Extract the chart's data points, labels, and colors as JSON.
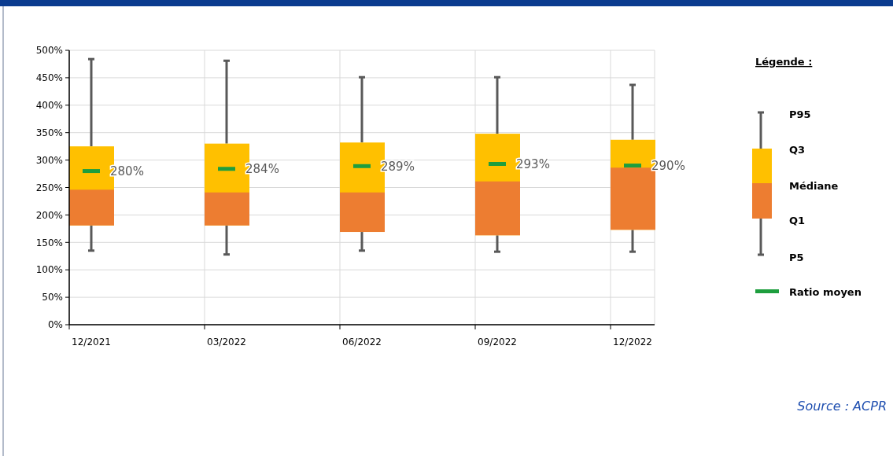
{
  "chart_data": {
    "type": "box",
    "categories": [
      "12/2021",
      "03/2022",
      "06/2022",
      "09/2022",
      "12/2022"
    ],
    "ylim": [
      0,
      500
    ],
    "yticks": [
      {
        "value": 0,
        "label": "0%"
      },
      {
        "value": 50,
        "label": "50%"
      },
      {
        "value": 100,
        "label": "100%"
      },
      {
        "value": 150,
        "label": "150%"
      },
      {
        "value": 200,
        "label": "200%"
      },
      {
        "value": 250,
        "label": "250%"
      },
      {
        "value": 300,
        "label": "300%"
      },
      {
        "value": 350,
        "label": "350%"
      },
      {
        "value": 400,
        "label": "400%"
      },
      {
        "value": 450,
        "label": "450%"
      },
      {
        "value": 500,
        "label": "500%"
      }
    ],
    "grid": true,
    "legend_title": "Légende :",
    "series": [
      {
        "color": "#ffc000",
        "boxes": [
          {
            "low": 135,
            "q1": 181,
            "median": 246,
            "q3": 325,
            "high": 484,
            "mean": 280
          },
          {
            "low": 128,
            "q1": 181,
            "median": 241,
            "q3": 330,
            "high": 481,
            "mean": 284
          },
          {
            "low": 135,
            "q1": 169,
            "median": 241,
            "q3": 332,
            "high": 451,
            "mean": 289
          },
          {
            "low": 133,
            "q1": 163,
            "median": 261,
            "q3": 348,
            "high": 451,
            "mean": 293
          },
          {
            "low": 133,
            "q1": 173,
            "median": 286,
            "q3": 337,
            "high": 437,
            "mean": 290
          }
        ]
      }
    ],
    "annotations": [
      "P95",
      "Q3",
      "Médiane",
      "Q1",
      "P5",
      "Ratio moyen",
      {
        "text": "280%",
        "x": "12/2021",
        "y": 280
      },
      {
        "text": "284%",
        "x": "03/2022",
        "y": 284
      },
      {
        "text": "289%",
        "x": "06/2022",
        "y": 289
      },
      {
        "text": "293%",
        "x": "09/2022",
        "y": 293
      },
      {
        "text": "290%",
        "x": "12/2022",
        "y": 290
      },
      "Source : ACPR"
    ]
  }
}
